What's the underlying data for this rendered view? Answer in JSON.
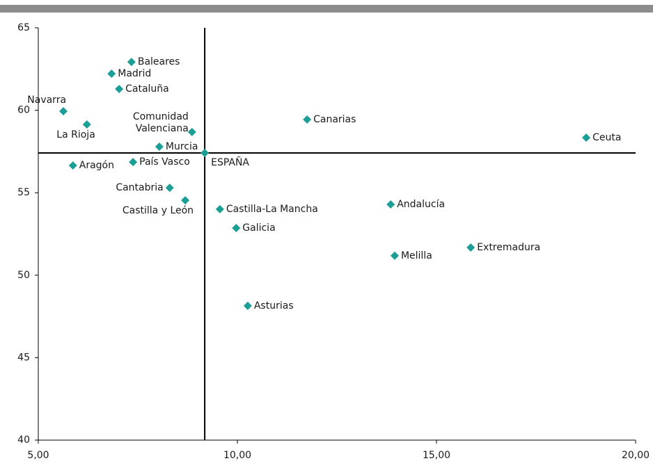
{
  "chart_data": {
    "type": "scatter",
    "color": "#1a9e96",
    "labels": [
      "Baleares",
      "Madrid",
      "Cataluña",
      "Navarra",
      "La Rioja",
      [
        "Comunidad",
        "Valenciana"
      ],
      "Canarias",
      "Ceuta",
      "Murcia",
      "ESPAÑA",
      "Aragón",
      "País Vasco",
      "Cantabria",
      "Castilla y León",
      "Castilla-La Mancha",
      "Andalucía",
      "Galicia",
      "Extremadura",
      "Melilla",
      "Asturias"
    ],
    "x": [
      7.34,
      6.84,
      7.03,
      5.63,
      6.22,
      8.86,
      11.75,
      18.76,
      8.04,
      9.18,
      5.87,
      7.38,
      8.3,
      8.69,
      9.56,
      13.85,
      9.97,
      15.86,
      13.95,
      10.26
    ],
    "values": [
      62.93,
      62.22,
      61.29,
      59.94,
      59.14,
      58.68,
      59.44,
      58.34,
      57.79,
      57.41,
      56.65,
      56.86,
      55.3,
      54.54,
      54.0,
      54.29,
      52.86,
      51.68,
      51.18,
      48.14
    ],
    "xlim": [
      5,
      20
    ],
    "xticks": [
      {
        "value": 5,
        "label": "5,00"
      },
      {
        "value": 10,
        "label": "10,00"
      },
      {
        "value": 15,
        "label": "15,00"
      },
      {
        "value": 20,
        "label": "20,00"
      }
    ],
    "ylim": [
      40,
      65
    ],
    "yticks": [
      40,
      45,
      50,
      55,
      60,
      65
    ]
  }
}
